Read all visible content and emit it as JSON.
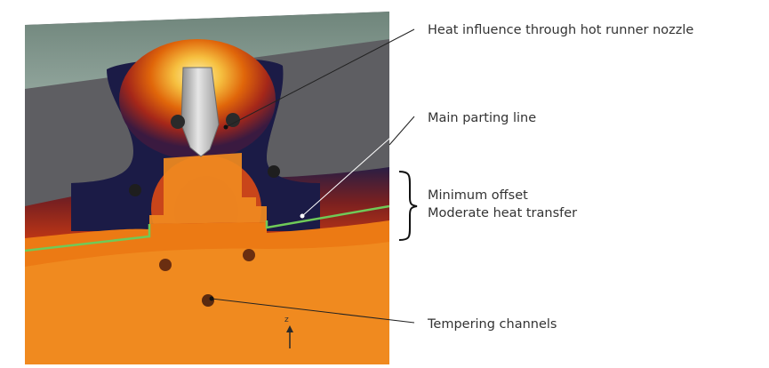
{
  "annotations": {
    "hot_runner": "Heat influence through hot runner nozzle",
    "parting_line": "Main parting line",
    "offset_line1": "Minimum offset",
    "offset_line2": "Moderate heat transfer",
    "tempering": "Tempering channels"
  },
  "axis_label": "z",
  "colors": {
    "mold_top": "#7d9389",
    "mold_steel": "#5e5e62",
    "heat_dark": "#1b1b46",
    "heat_mid": "#a52719",
    "heat_orange": "#e0660a",
    "part": "#f08a1f",
    "parting_line": "#6fca58",
    "leader": "#222222"
  }
}
